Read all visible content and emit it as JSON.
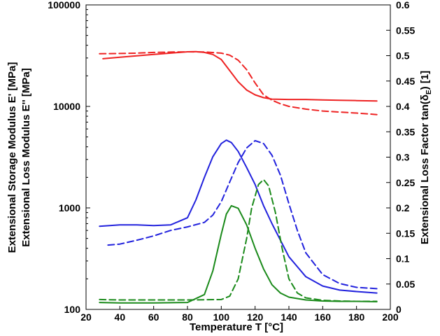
{
  "chart_data": {
    "type": "line",
    "title": "",
    "xlabel": "Temperature T [°C]",
    "ylabel_left_line1": "Extensional Storage Modulus E' [MPa]",
    "ylabel_left_line2": "Extensional Loss Modulus E'' [MPa]",
    "ylabel_right_prefix": "Extensional Loss Factor tan(",
    "ylabel_right_delta": "δ",
    "ylabel_right_sub": "E",
    "ylabel_right_suffix": ") [1]",
    "xlim": [
      20,
      200
    ],
    "ylim_left": [
      100,
      100000
    ],
    "ylim_right": [
      0,
      0.6
    ],
    "left_scale": "log",
    "grid": false,
    "legend": "none",
    "x_ticks": [
      20,
      40,
      60,
      80,
      100,
      120,
      140,
      160,
      180,
      200
    ],
    "x_tick_labels": [
      "20",
      "40",
      "60",
      "80",
      "100",
      "120",
      "140",
      "160",
      "180",
      "200"
    ],
    "y_left_ticks": [
      100,
      1000,
      10000,
      100000
    ],
    "y_left_tick_labels": [
      "100",
      "1000",
      "10000",
      "100000"
    ],
    "y_right_ticks": [
      0,
      0.05,
      0.1,
      0.15,
      0.2,
      0.25,
      0.3,
      0.35,
      0.4,
      0.45,
      0.5,
      0.55,
      0.6
    ],
    "y_right_tick_labels": [
      "0",
      "0.05",
      "0.1",
      "0.15",
      "0.2",
      "0.25",
      "0.3",
      "0.35",
      "0.4",
      "0.45",
      "0.5",
      "0.55",
      "0.6"
    ],
    "series": [
      {
        "color": "#ee2222",
        "dash": "solid",
        "axis": "left",
        "x": [
          30,
          40,
          50,
          60,
          70,
          80,
          85,
          90,
          95,
          100,
          105,
          110,
          115,
          120,
          125,
          130,
          140,
          150,
          160,
          170,
          180,
          192
        ],
        "y": [
          29500,
          30500,
          31500,
          32500,
          33500,
          34500,
          34600,
          34000,
          32500,
          29000,
          22500,
          17500,
          14500,
          13000,
          12200,
          11800,
          11700,
          11700,
          11600,
          11500,
          11400,
          11300
        ]
      },
      {
        "color": "#ee2222",
        "dash": "dashed",
        "axis": "left",
        "x": [
          28,
          40,
          50,
          60,
          70,
          80,
          90,
          100,
          105,
          110,
          115,
          120,
          125,
          130,
          135,
          140,
          150,
          160,
          170,
          180,
          192
        ],
        "y": [
          33000,
          33200,
          33500,
          34000,
          34300,
          34500,
          34400,
          33500,
          32000,
          28500,
          23000,
          17000,
          13000,
          11500,
          10600,
          10000,
          9400,
          9000,
          8800,
          8600,
          8300
        ]
      },
      {
        "color": "#2222dd",
        "dash": "solid",
        "axis": "left",
        "x": [
          28,
          40,
          50,
          60,
          70,
          80,
          85,
          90,
          95,
          100,
          103,
          106,
          110,
          115,
          120,
          125,
          130,
          140,
          150,
          160,
          170,
          180,
          192
        ],
        "y": [
          660,
          680,
          680,
          670,
          680,
          800,
          1200,
          2000,
          3200,
          4300,
          4650,
          4400,
          3600,
          2500,
          1700,
          1050,
          700,
          330,
          210,
          170,
          155,
          150,
          145
        ]
      },
      {
        "color": "#2222dd",
        "dash": "dashed",
        "axis": "left",
        "x": [
          33,
          40,
          50,
          60,
          70,
          80,
          90,
          95,
          100,
          105,
          110,
          115,
          120,
          125,
          130,
          135,
          140,
          145,
          150,
          160,
          170,
          180,
          192
        ],
        "y": [
          430,
          440,
          480,
          530,
          600,
          650,
          720,
          850,
          1150,
          1800,
          2800,
          3900,
          4600,
          4300,
          3300,
          2100,
          1100,
          600,
          360,
          220,
          180,
          165,
          160
        ]
      },
      {
        "color": "#1a8a1a",
        "dash": "solid",
        "axis": "left",
        "x": [
          28,
          40,
          60,
          80,
          90,
          95,
          100,
          103,
          106,
          110,
          115,
          120,
          125,
          130,
          135,
          140,
          150,
          160,
          170,
          180,
          192
        ],
        "y": [
          117,
          116,
          116,
          117,
          140,
          240,
          550,
          870,
          1050,
          990,
          680,
          400,
          250,
          175,
          145,
          132,
          124,
          121,
          120,
          120,
          119
        ]
      },
      {
        "color": "#1a8a1a",
        "dash": "dashed",
        "axis": "left",
        "x": [
          28,
          40,
          60,
          80,
          100,
          105,
          110,
          115,
          118,
          122,
          125,
          128,
          132,
          136,
          140,
          145,
          150,
          160,
          170,
          180,
          192
        ],
        "y": [
          125,
          124,
          124,
          124,
          125,
          135,
          200,
          500,
          1000,
          1700,
          1900,
          1650,
          900,
          400,
          200,
          145,
          130,
          123,
          121,
          120,
          120
        ]
      }
    ]
  }
}
